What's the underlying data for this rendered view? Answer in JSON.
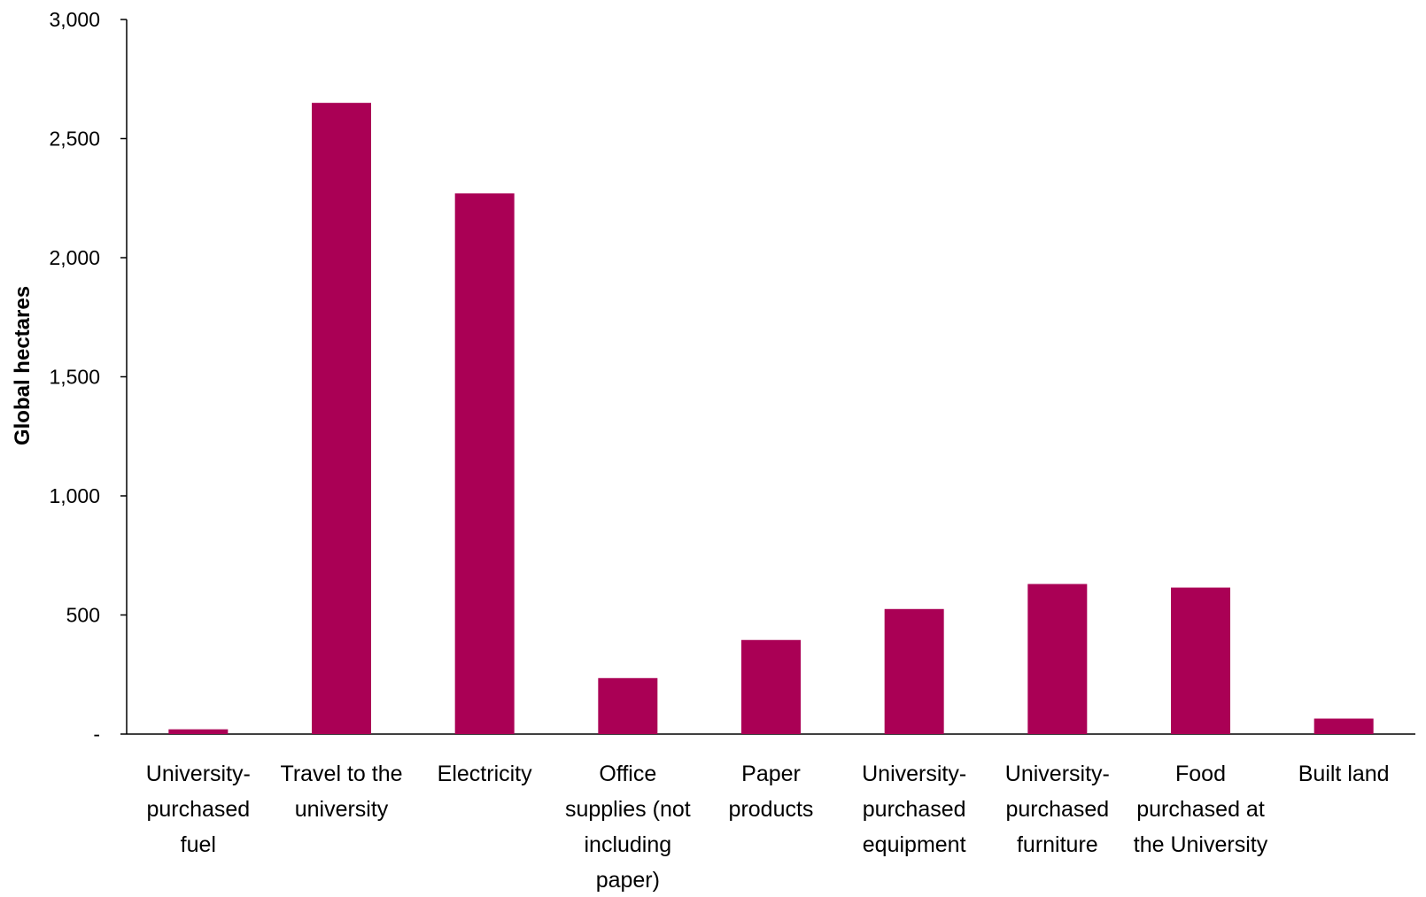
{
  "chart_data": {
    "type": "bar",
    "title": "",
    "xlabel": "",
    "ylabel": "Global hectares",
    "ylim": [
      0,
      3000
    ],
    "yticks": [
      0,
      500,
      1000,
      1500,
      2000,
      2500,
      3000
    ],
    "ytick_labels": [
      "-",
      "500",
      "1,000",
      "1,500",
      "2,000",
      "2,500",
      "3,000"
    ],
    "categories": [
      [
        "University-",
        "purchased",
        "fuel"
      ],
      [
        "Travel to the",
        "university"
      ],
      [
        "Electricity"
      ],
      [
        "Office",
        "supplies (not",
        "including",
        "paper)"
      ],
      [
        "Paper",
        "products"
      ],
      [
        "University-",
        "purchased",
        "equipment"
      ],
      [
        "University-",
        "purchased",
        "furniture"
      ],
      [
        "Food",
        "purchased at",
        "the University"
      ],
      [
        "Built land"
      ]
    ],
    "values": [
      20,
      2650,
      2270,
      235,
      395,
      525,
      630,
      615,
      65
    ],
    "bar_color": "#aa0055",
    "grid": false,
    "legend": "none"
  }
}
